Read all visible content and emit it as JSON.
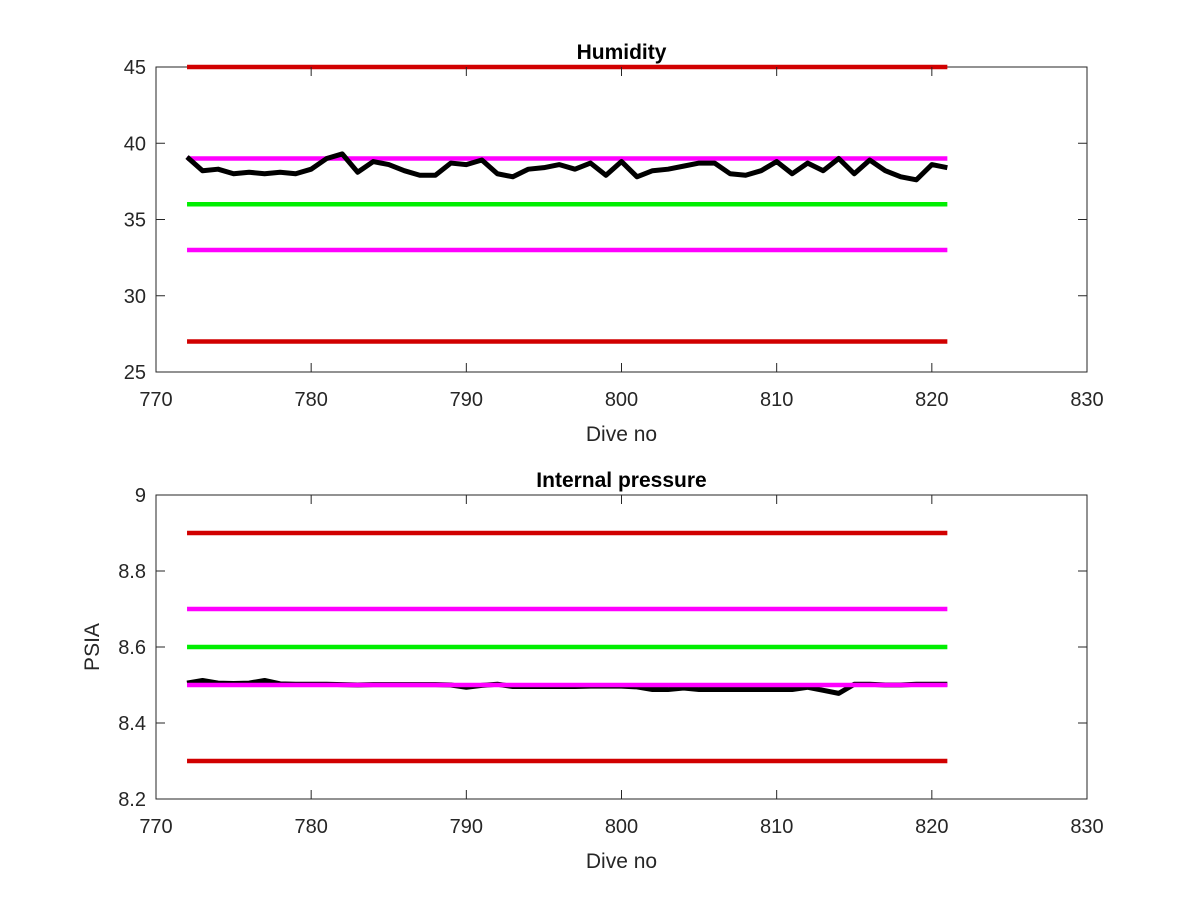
{
  "colors": {
    "red": "#d10000",
    "magenta": "#ff00ff",
    "green": "#00ee00",
    "black": "#000000",
    "axis": "#262626"
  },
  "chart_data": [
    {
      "type": "line",
      "title": "Humidity",
      "xlabel": "Dive no",
      "ylabel": "",
      "xlim": [
        770,
        830
      ],
      "ylim": [
        25,
        45
      ],
      "xticks": [
        770,
        780,
        790,
        800,
        810,
        820,
        830
      ],
      "xtick_labels": [
        "770",
        "780",
        "790",
        "800",
        "810",
        "820",
        "830"
      ],
      "yticks": [
        25,
        30,
        35,
        40,
        45
      ],
      "ytick_labels": [
        "25",
        "30",
        "35",
        "40",
        "45"
      ],
      "grid": false,
      "box": true,
      "series": [
        {
          "color": "red",
          "x": [
            772,
            821
          ],
          "y": [
            45,
            45
          ]
        },
        {
          "color": "magenta",
          "x": [
            772,
            821
          ],
          "y": [
            39,
            39
          ]
        },
        {
          "color": "green",
          "x": [
            772,
            821
          ],
          "y": [
            36,
            36
          ]
        },
        {
          "color": "magenta",
          "x": [
            772,
            821
          ],
          "y": [
            33,
            33
          ]
        },
        {
          "color": "red",
          "x": [
            772,
            821
          ],
          "y": [
            27,
            27
          ]
        },
        {
          "color": "black",
          "x": [
            772,
            773,
            774,
            775,
            776,
            777,
            778,
            779,
            780,
            781,
            782,
            783,
            784,
            785,
            786,
            787,
            788,
            789,
            790,
            791,
            792,
            793,
            794,
            795,
            796,
            797,
            798,
            799,
            800,
            801,
            802,
            803,
            804,
            805,
            806,
            807,
            808,
            809,
            810,
            811,
            812,
            813,
            814,
            815,
            816,
            817,
            818,
            819,
            820,
            821
          ],
          "y": [
            39.1,
            38.2,
            38.3,
            38.0,
            38.1,
            38.0,
            38.1,
            38.0,
            38.3,
            39.0,
            39.3,
            38.1,
            38.8,
            38.6,
            38.2,
            37.9,
            37.9,
            38.7,
            38.6,
            38.9,
            38.0,
            37.8,
            38.3,
            38.4,
            38.6,
            38.3,
            38.7,
            37.9,
            38.8,
            37.8,
            38.2,
            38.3,
            38.5,
            38.7,
            38.7,
            38.0,
            37.9,
            38.2,
            38.8,
            38.0,
            38.7,
            38.2,
            39.0,
            38.0,
            38.9,
            38.2,
            37.8,
            37.6,
            38.6,
            38.4
          ]
        }
      ]
    },
    {
      "type": "line",
      "title": "Internal pressure",
      "xlabel": "Dive no",
      "ylabel": "PSIA",
      "xlim": [
        770,
        830
      ],
      "ylim": [
        8.2,
        9
      ],
      "xticks": [
        770,
        780,
        790,
        800,
        810,
        820,
        830
      ],
      "xtick_labels": [
        "770",
        "780",
        "790",
        "800",
        "810",
        "820",
        "830"
      ],
      "yticks": [
        8.2,
        8.4,
        8.6,
        8.8,
        9
      ],
      "ytick_labels": [
        "8.2",
        "8.4",
        "8.6",
        "8.8",
        "9"
      ],
      "grid": false,
      "box": true,
      "series": [
        {
          "color": "red",
          "x": [
            772,
            821
          ],
          "y": [
            8.9,
            8.9
          ]
        },
        {
          "color": "magenta",
          "x": [
            772,
            821
          ],
          "y": [
            8.7,
            8.7
          ]
        },
        {
          "color": "green",
          "x": [
            772,
            821
          ],
          "y": [
            8.6,
            8.6
          ]
        },
        {
          "color": "red",
          "x": [
            772,
            821
          ],
          "y": [
            8.3,
            8.3
          ]
        },
        {
          "color": "black",
          "x": [
            772,
            773,
            774,
            775,
            776,
            777,
            778,
            779,
            780,
            781,
            782,
            783,
            784,
            785,
            786,
            787,
            788,
            789,
            790,
            791,
            792,
            793,
            794,
            795,
            796,
            797,
            798,
            799,
            800,
            801,
            802,
            803,
            804,
            805,
            806,
            807,
            808,
            809,
            810,
            811,
            812,
            813,
            814,
            815,
            816,
            817,
            818,
            819,
            820,
            821
          ],
          "y": [
            8.505,
            8.512,
            8.505,
            8.504,
            8.505,
            8.512,
            8.503,
            8.502,
            8.502,
            8.502,
            8.501,
            8.5,
            8.501,
            8.501,
            8.501,
            8.501,
            8.501,
            8.5,
            8.494,
            8.499,
            8.502,
            8.496,
            8.496,
            8.496,
            8.496,
            8.496,
            8.497,
            8.497,
            8.497,
            8.495,
            8.488,
            8.488,
            8.492,
            8.488,
            8.488,
            8.488,
            8.488,
            8.488,
            8.488,
            8.488,
            8.494,
            8.486,
            8.478,
            8.502,
            8.502,
            8.5,
            8.5,
            8.502,
            8.502,
            8.502
          ]
        },
        {
          "color": "magenta",
          "x": [
            772,
            821
          ],
          "y": [
            8.5,
            8.5
          ]
        }
      ]
    }
  ]
}
